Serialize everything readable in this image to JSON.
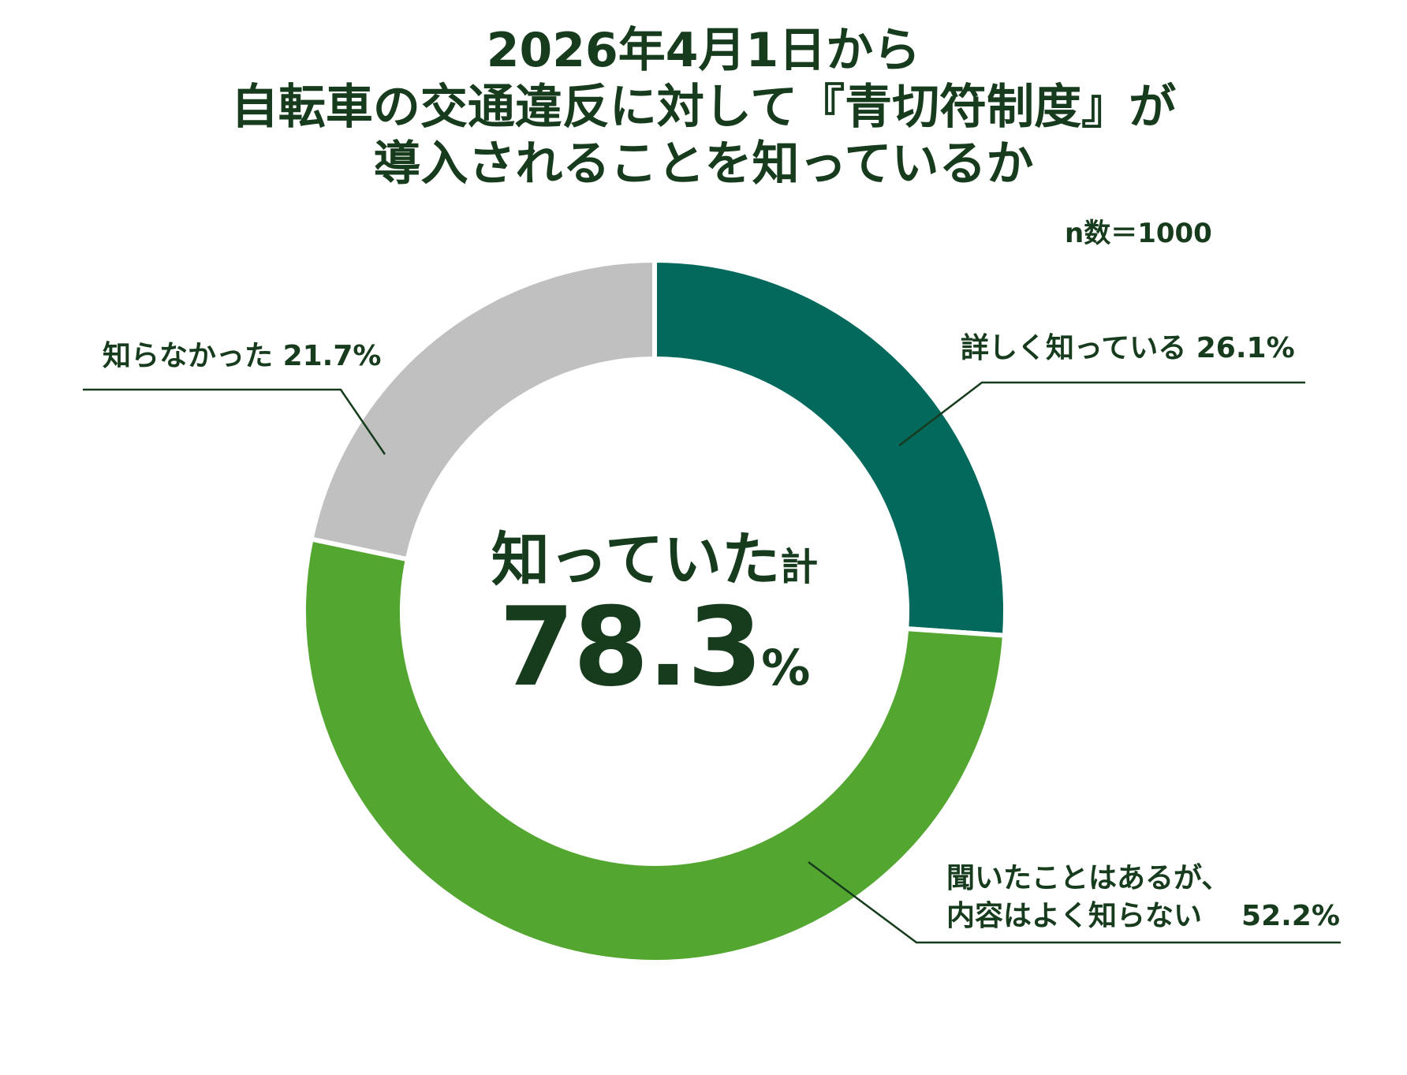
{
  "title_lines": [
    "2026年4月1日から",
    "自転車の交通違反に対して『青切符制度』が",
    "導入されることを知っているか"
  ],
  "sample_size": "n数＝1000",
  "center": {
    "label_main": "知っていた",
    "label_suffix": "計",
    "value": "78.3",
    "unit": "%"
  },
  "chart_data": {
    "type": "pie",
    "donut": true,
    "title": "2026年4月1日から自転車の交通違反に対して『青切符制度』が導入されることを知っているか",
    "slices": [
      {
        "label": "詳しく知っている",
        "value": 26.1,
        "value_text": "26.1%",
        "color": "#03695c"
      },
      {
        "label_lines": [
          "聞いたことはあるが、",
          "内容はよく知らない"
        ],
        "label": "聞いたことはあるが、内容はよく知らない",
        "value": 52.2,
        "value_text": "52.2%",
        "color": "#53a731"
      },
      {
        "label": "知らなかった",
        "value": 21.7,
        "value_text": "21.7%",
        "color": "#c0c0c0"
      }
    ]
  },
  "colors": {
    "text": "#173b1d",
    "leader": "#173b1d"
  }
}
